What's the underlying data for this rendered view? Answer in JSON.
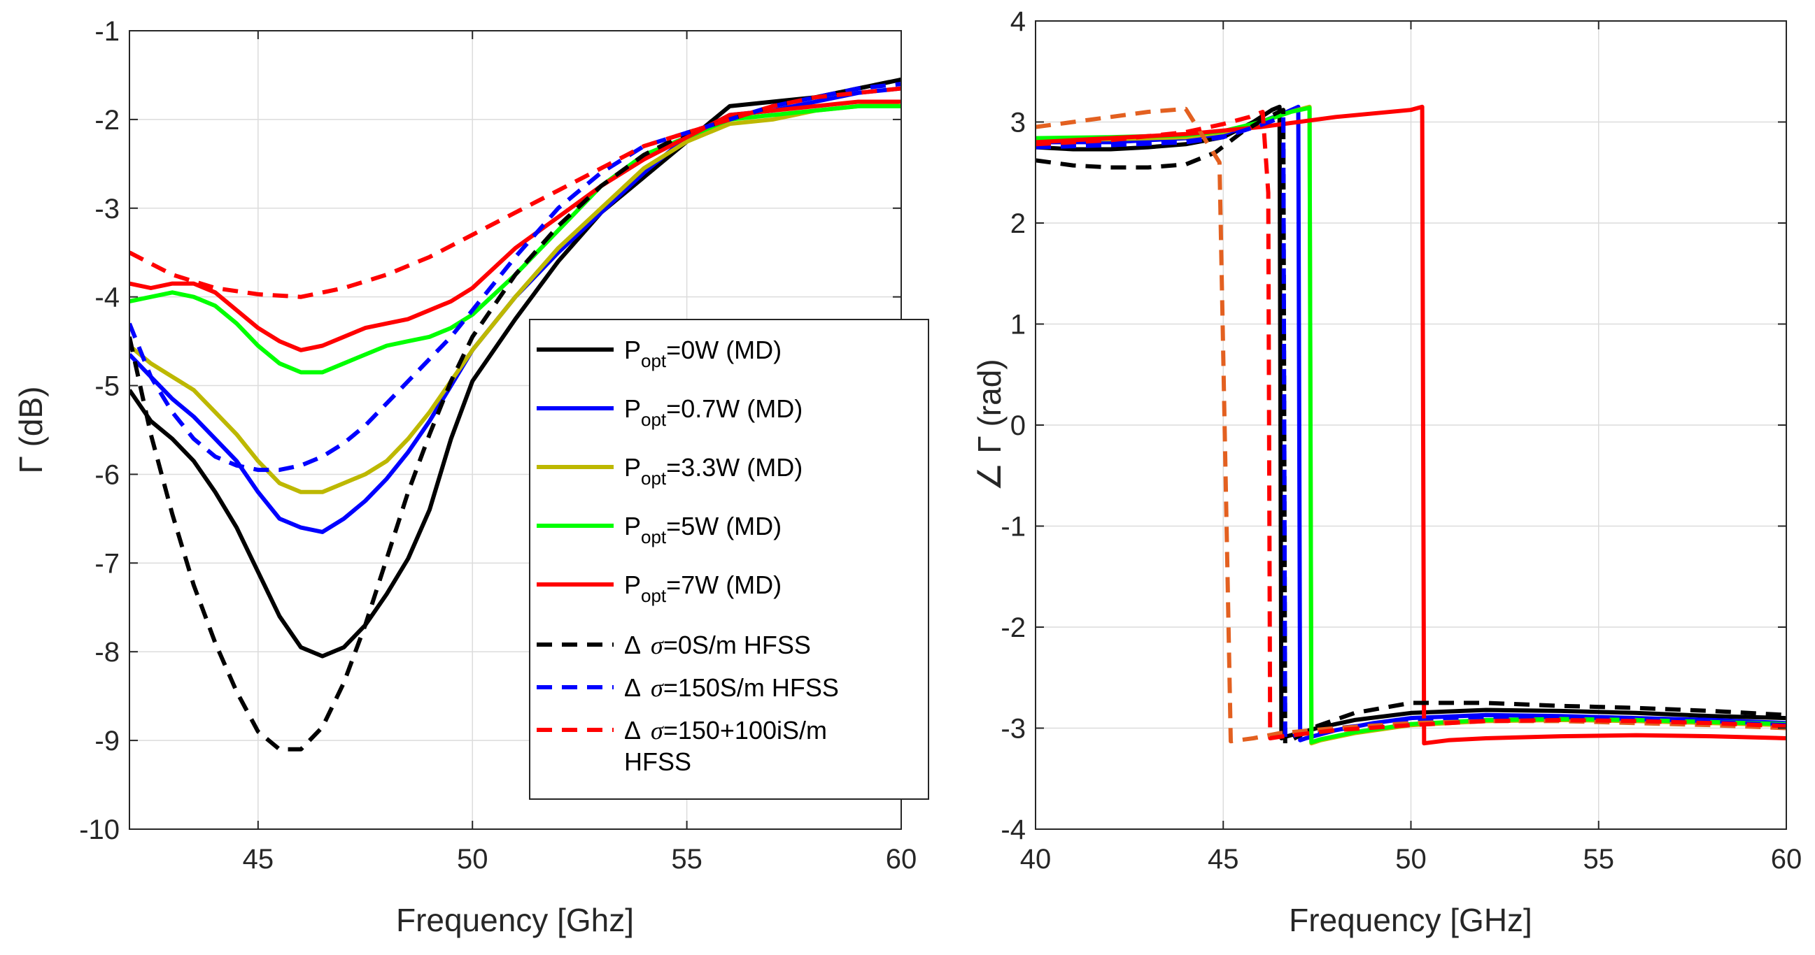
{
  "chart_data": [
    {
      "type": "line",
      "title": "",
      "xlabel": "Frequency [Ghz]",
      "ylabel": "Γ (dB)",
      "xlim": [
        42,
        60
      ],
      "ylim": [
        -10,
        -1
      ],
      "xticks": [
        45,
        50,
        55,
        60
      ],
      "yticks": [
        -10,
        -9,
        -8,
        -7,
        -6,
        -5,
        -4,
        -3,
        -2,
        -1
      ],
      "grid": true,
      "legend": {
        "placement": "center-right",
        "entries": [
          {
            "series": 0,
            "prefix": "P",
            "sub": "opt",
            "rest": "=0W (MD)"
          },
          {
            "series": 1,
            "prefix": "P",
            "sub": "opt",
            "rest": "=0.7W (MD)"
          },
          {
            "series": 2,
            "prefix": "P",
            "sub": "opt",
            "rest": "=3.3W (MD)"
          },
          {
            "series": 3,
            "prefix": "P",
            "sub": "opt",
            "rest": "=5W (MD)"
          },
          {
            "series": 4,
            "prefix": "P",
            "sub": "opt",
            "rest": "=7W (MD)"
          },
          {
            "series": 5,
            "delta": "Δ",
            "sigma": "σ",
            "rest": "=0S/m HFSS"
          },
          {
            "series": 6,
            "delta": "Δ",
            "sigma": "σ",
            "rest": "=150S/m HFSS"
          },
          {
            "series": 7,
            "delta": "Δ",
            "sigma": "σ",
            "rest": "=150+100iS/m",
            "line2": "HFSS"
          }
        ]
      },
      "series": [
        {
          "name": "Popt=0W (MD)",
          "color": "#000000",
          "dash": "solid",
          "x": [
            42,
            42.5,
            43,
            43.5,
            44,
            44.5,
            45,
            45.5,
            46,
            46.5,
            47,
            47.5,
            48,
            48.5,
            49,
            49.5,
            50,
            51,
            52,
            53,
            54,
            55,
            56,
            57,
            58,
            59,
            60
          ],
          "y": [
            -5.05,
            -5.4,
            -5.6,
            -5.85,
            -6.2,
            -6.6,
            -7.1,
            -7.6,
            -7.95,
            -8.05,
            -7.95,
            -7.7,
            -7.35,
            -6.95,
            -6.4,
            -5.6,
            -4.95,
            -4.25,
            -3.6,
            -3.05,
            -2.65,
            -2.25,
            -1.85,
            -1.8,
            -1.75,
            -1.65,
            -1.55
          ]
        },
        {
          "name": "Popt=0.7W (MD)",
          "color": "#0000ff",
          "dash": "solid",
          "x": [
            42,
            42.5,
            43,
            43.5,
            44,
            44.5,
            45,
            45.5,
            46,
            46.5,
            47,
            47.5,
            48,
            48.5,
            49,
            49.5,
            50,
            51,
            52,
            53,
            54,
            55,
            56,
            57,
            58,
            59,
            60
          ],
          "y": [
            -4.65,
            -4.9,
            -5.15,
            -5.35,
            -5.6,
            -5.85,
            -6.2,
            -6.5,
            -6.6,
            -6.65,
            -6.5,
            -6.3,
            -6.05,
            -5.75,
            -5.4,
            -5.0,
            -4.6,
            -4.0,
            -3.5,
            -3.05,
            -2.6,
            -2.2,
            -1.95,
            -1.9,
            -1.8,
            -1.7,
            -1.65
          ]
        },
        {
          "name": "Popt=3.3W (MD)",
          "color": "#bdb800",
          "dash": "solid",
          "x": [
            42,
            42.5,
            43,
            43.5,
            44,
            44.5,
            45,
            45.5,
            46,
            46.5,
            47,
            47.5,
            48,
            48.5,
            49,
            49.5,
            50,
            51,
            52,
            53,
            54,
            55,
            56,
            57,
            58,
            59,
            60
          ],
          "y": [
            -4.55,
            -4.75,
            -4.9,
            -5.05,
            -5.3,
            -5.55,
            -5.85,
            -6.1,
            -6.2,
            -6.2,
            -6.1,
            -6.0,
            -5.85,
            -5.6,
            -5.3,
            -4.95,
            -4.6,
            -4.0,
            -3.45,
            -3.0,
            -2.55,
            -2.25,
            -2.05,
            -2.0,
            -1.9,
            -1.85,
            -1.8
          ]
        },
        {
          "name": "Popt=5W (MD)",
          "color": "#00ff00",
          "dash": "solid",
          "x": [
            42,
            42.5,
            43,
            43.5,
            44,
            44.5,
            45,
            45.5,
            46,
            46.5,
            47,
            47.5,
            48,
            48.5,
            49,
            49.5,
            50,
            51,
            52,
            53,
            54,
            55,
            56,
            57,
            58,
            59,
            60
          ],
          "y": [
            -4.05,
            -4.0,
            -3.95,
            -4.0,
            -4.1,
            -4.3,
            -4.55,
            -4.75,
            -4.85,
            -4.85,
            -4.75,
            -4.65,
            -4.55,
            -4.5,
            -4.45,
            -4.35,
            -4.2,
            -3.75,
            -3.25,
            -2.75,
            -2.4,
            -2.2,
            -2.0,
            -1.95,
            -1.9,
            -1.85,
            -1.85
          ]
        },
        {
          "name": "Popt=7W (MD)",
          "color": "#ff0000",
          "dash": "solid",
          "x": [
            42,
            42.5,
            43,
            43.5,
            44,
            44.5,
            45,
            45.5,
            46,
            46.5,
            47,
            47.5,
            48,
            48.5,
            49,
            49.5,
            50,
            51,
            52,
            53,
            54,
            55,
            56,
            57,
            58,
            59,
            60
          ],
          "y": [
            -3.85,
            -3.9,
            -3.85,
            -3.85,
            -3.95,
            -4.15,
            -4.35,
            -4.5,
            -4.6,
            -4.55,
            -4.45,
            -4.35,
            -4.3,
            -4.25,
            -4.15,
            -4.05,
            -3.9,
            -3.45,
            -3.1,
            -2.75,
            -2.45,
            -2.2,
            -1.95,
            -1.9,
            -1.85,
            -1.8,
            -1.8
          ]
        },
        {
          "name": "Δσ=0S/m HFSS",
          "color": "#000000",
          "dash": "dashed",
          "x": [
            42,
            42.5,
            43,
            43.5,
            44,
            44.5,
            45,
            45.5,
            46,
            46.5,
            47,
            47.5,
            48,
            48.5,
            49,
            49.5,
            50,
            51,
            52,
            53,
            54,
            55,
            56,
            57,
            58,
            59,
            60
          ],
          "y": [
            -4.45,
            -5.55,
            -6.45,
            -7.25,
            -7.9,
            -8.45,
            -8.9,
            -9.1,
            -9.1,
            -8.85,
            -8.35,
            -7.7,
            -6.95,
            -6.2,
            -5.55,
            -4.95,
            -4.45,
            -3.75,
            -3.2,
            -2.75,
            -2.4,
            -2.15,
            -2.0,
            -1.85,
            -1.75,
            -1.65,
            -1.55
          ]
        },
        {
          "name": "Δσ=150S/m HFSS",
          "color": "#0000ff",
          "dash": "dashed",
          "x": [
            42,
            42.5,
            43,
            43.5,
            44,
            44.5,
            45,
            45.5,
            46,
            46.5,
            47,
            47.5,
            48,
            48.5,
            49,
            49.5,
            50,
            51,
            52,
            53,
            54,
            55,
            56,
            57,
            58,
            59,
            60
          ],
          "y": [
            -4.3,
            -4.9,
            -5.3,
            -5.6,
            -5.8,
            -5.9,
            -5.95,
            -5.95,
            -5.9,
            -5.8,
            -5.65,
            -5.45,
            -5.2,
            -4.95,
            -4.7,
            -4.45,
            -4.15,
            -3.55,
            -3.0,
            -2.6,
            -2.3,
            -2.15,
            -2.0,
            -1.85,
            -1.75,
            -1.65,
            -1.6
          ]
        },
        {
          "name": "Δσ=150+100iS/m HFSS",
          "color": "#ff0000",
          "dash": "dashed",
          "x": [
            42,
            43,
            44,
            45,
            46,
            47,
            48,
            49,
            50,
            51,
            52,
            53,
            54,
            55,
            56,
            57,
            58,
            59,
            60
          ],
          "y": [
            -3.5,
            -3.75,
            -3.9,
            -3.97,
            -4.0,
            -3.9,
            -3.75,
            -3.55,
            -3.3,
            -3.05,
            -2.8,
            -2.55,
            -2.3,
            -2.15,
            -2.0,
            -1.85,
            -1.75,
            -1.7,
            -1.65
          ]
        }
      ]
    },
    {
      "type": "line",
      "title": "",
      "xlabel": "Frequency [GHz]",
      "ylabel": "∠ Γ (rad)",
      "xlim": [
        40,
        60
      ],
      "ylim": [
        -4,
        4
      ],
      "xticks": [
        40,
        45,
        50,
        55,
        60
      ],
      "yticks": [
        -4,
        -3,
        -2,
        -1,
        0,
        1,
        2,
        3,
        4
      ],
      "grid": true,
      "series": [
        {
          "color": "#000000",
          "dash": "solid",
          "x": [
            40,
            41,
            42,
            43,
            44,
            45,
            45.8,
            46.3,
            46.5,
            46.55,
            46.7,
            47.5,
            48.5,
            50,
            52,
            54,
            56,
            58,
            60
          ],
          "y": [
            2.75,
            2.73,
            2.73,
            2.75,
            2.78,
            2.85,
            3.0,
            3.12,
            3.15,
            -3.1,
            -3.08,
            -3.0,
            -2.92,
            -2.85,
            -2.82,
            -2.83,
            -2.85,
            -2.88,
            -2.9
          ]
        },
        {
          "color": "#0000ff",
          "dash": "solid",
          "x": [
            40,
            41,
            42,
            43,
            44,
            45,
            46,
            46.7,
            47.0,
            47.05,
            47.2,
            48,
            49,
            50,
            52,
            54,
            56,
            58,
            60
          ],
          "y": [
            2.8,
            2.8,
            2.8,
            2.82,
            2.84,
            2.88,
            3.0,
            3.1,
            3.15,
            -3.12,
            -3.1,
            -3.02,
            -2.95,
            -2.9,
            -2.87,
            -2.88,
            -2.9,
            -2.92,
            -2.95
          ]
        },
        {
          "color": "#bdb800",
          "dash": "solid",
          "x": [
            40,
            42,
            44,
            45,
            46,
            46.8,
            47.3,
            47.35,
            47.6,
            48.5,
            50,
            52,
            54,
            56,
            58,
            60
          ],
          "y": [
            2.82,
            2.83,
            2.85,
            2.9,
            3.0,
            3.1,
            3.15,
            -3.15,
            -3.12,
            -3.05,
            -2.97,
            -2.93,
            -2.92,
            -2.93,
            -2.95,
            -2.97
          ]
        },
        {
          "color": "#00ff00",
          "dash": "solid",
          "x": [
            40,
            42,
            44,
            45,
            46,
            46.8,
            47.3,
            47.35,
            47.6,
            48.5,
            50,
            52,
            54,
            56,
            58,
            60
          ],
          "y": [
            2.84,
            2.85,
            2.87,
            2.91,
            3.0,
            3.1,
            3.14,
            -3.14,
            -3.11,
            -3.04,
            -2.96,
            -2.92,
            -2.91,
            -2.92,
            -2.94,
            -2.96
          ]
        },
        {
          "color": "#ff0000",
          "dash": "solid",
          "x": [
            40,
            42,
            44,
            46,
            48,
            50,
            50.3,
            50.35,
            51,
            52,
            54,
            56,
            58,
            60
          ],
          "y": [
            2.8,
            2.84,
            2.88,
            2.95,
            3.05,
            3.12,
            3.15,
            -3.15,
            -3.12,
            -3.1,
            -3.08,
            -3.07,
            -3.08,
            -3.1
          ]
        },
        {
          "color": "#000000",
          "dash": "dashed",
          "x": [
            40,
            41,
            42,
            43,
            44,
            44.8,
            45.5,
            46.2,
            46.6,
            46.65,
            46.9,
            47.5,
            48.5,
            50,
            52,
            54,
            56,
            58,
            60
          ],
          "y": [
            2.62,
            2.57,
            2.55,
            2.55,
            2.58,
            2.7,
            2.9,
            3.05,
            3.12,
            -3.15,
            -3.1,
            -2.98,
            -2.85,
            -2.75,
            -2.75,
            -2.78,
            -2.8,
            -2.83,
            -2.87
          ]
        },
        {
          "color": "#0000ff",
          "dash": "dashed",
          "x": [
            40,
            42,
            44,
            45,
            46,
            46.6,
            46.65,
            47,
            48,
            50,
            52,
            54,
            56,
            58,
            60
          ],
          "y": [
            2.75,
            2.77,
            2.8,
            2.85,
            2.97,
            3.05,
            -3.1,
            -3.06,
            -3.0,
            -2.93,
            -2.9,
            -2.9,
            -2.92,
            -2.94,
            -2.97
          ]
        },
        {
          "color": "#e36020",
          "dash": "dashed",
          "x": [
            40,
            41,
            42,
            43,
            44,
            44.9,
            45.2,
            45.8,
            46.5,
            48,
            50,
            52,
            54,
            56,
            58,
            60
          ],
          "y": [
            2.95,
            3.0,
            3.05,
            3.1,
            3.13,
            2.6,
            -3.13,
            -3.1,
            -3.05,
            -3.0,
            -2.95,
            -2.93,
            -2.93,
            -2.95,
            -2.97,
            -3.0
          ]
        },
        {
          "color": "#ff0000",
          "dash": "dashed",
          "x": [
            40,
            42,
            44,
            45,
            45.7,
            46.05,
            46.2,
            46.25,
            46.6,
            48,
            50,
            52,
            54,
            56,
            58,
            60
          ],
          "y": [
            2.78,
            2.82,
            2.9,
            2.98,
            3.05,
            3.1,
            2.3,
            -3.1,
            -3.08,
            -3.02,
            -2.97,
            -2.93,
            -2.92,
            -2.93,
            -2.95,
            -2.98
          ]
        }
      ]
    }
  ]
}
